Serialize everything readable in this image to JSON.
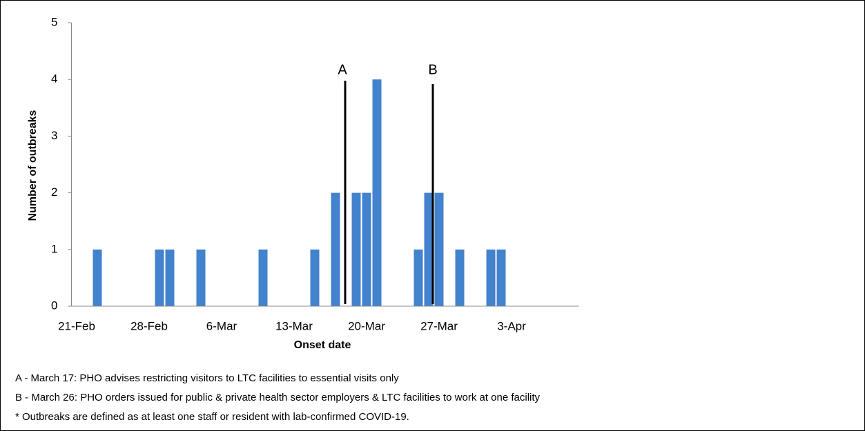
{
  "chart_data": {
    "type": "bar",
    "x_label": "Onset date",
    "y_label": "Number of outbreaks",
    "categories": [
      "21-Feb",
      null,
      null,
      null,
      null,
      null,
      null,
      "28-Feb",
      null,
      null,
      null,
      null,
      null,
      null,
      "6-Mar",
      null,
      null,
      null,
      null,
      null,
      null,
      "13-Mar",
      null,
      null,
      null,
      null,
      null,
      null,
      "20-Mar",
      null,
      null,
      null,
      null,
      null,
      null,
      "27-Mar",
      null,
      null,
      null,
      null,
      null,
      null,
      "3-Apr",
      null,
      null,
      null,
      null,
      null,
      null
    ],
    "values": [
      0,
      0,
      1,
      0,
      0,
      0,
      0,
      0,
      1,
      1,
      0,
      0,
      1,
      0,
      0,
      0,
      0,
      0,
      1,
      0,
      0,
      0,
      0,
      1,
      0,
      2,
      0,
      2,
      2,
      4,
      0,
      0,
      0,
      1,
      2,
      2,
      0,
      1,
      0,
      0,
      1,
      1,
      0,
      0,
      0,
      0,
      0,
      0,
      0
    ],
    "color": "#4382cc",
    "ylim": [
      0,
      5
    ],
    "yticks": [
      0,
      1,
      2,
      3,
      4,
      5
    ],
    "grid": false,
    "annotations": [
      {
        "label": "A"
      },
      {
        "label": "B"
      }
    ],
    "notes": [
      "A - March 17: PHO advises restricting visitors to LTC facilities to essential visits only",
      "B - March 26: PHO orders issued for public & private health sector employers & LTC facilities to work at one facility",
      "* Outbreaks are defined as at least one staff or resident with lab-confirmed COVID-19."
    ]
  }
}
